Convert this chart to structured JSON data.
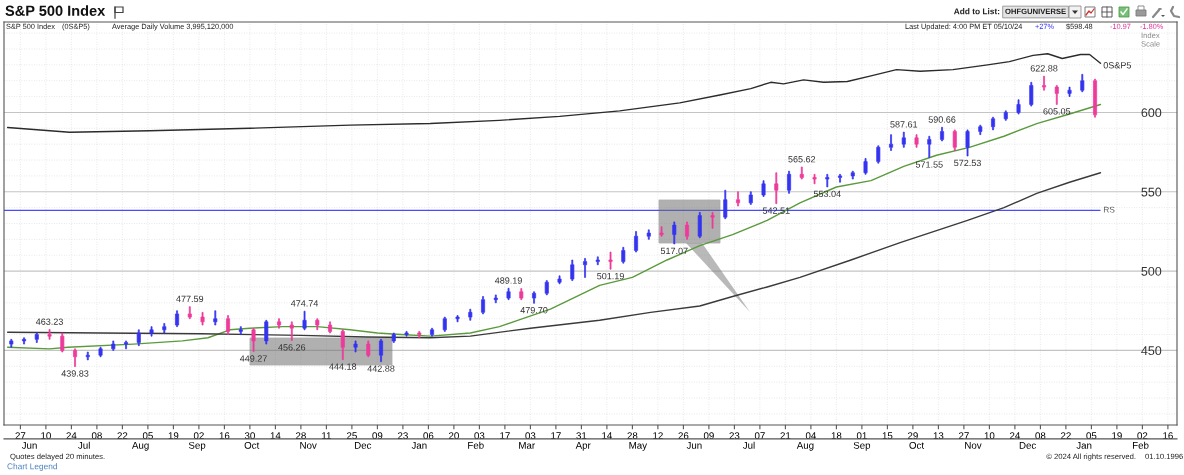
{
  "chart_data": {
    "type": "candlestick",
    "title": "S&P 500 Index",
    "x": [
      "2024-05-22",
      "2024-05-29",
      "2024-06-05",
      "2024-06-12",
      "2024-06-19",
      "2024-06-26",
      "2024-07-03",
      "2024-07-10",
      "2024-07-17",
      "2024-07-24",
      "2024-07-31",
      "2024-08-07",
      "2024-08-14",
      "2024-08-21",
      "2024-08-28",
      "2024-09-04",
      "2024-09-11",
      "2024-09-18",
      "2024-09-25",
      "2024-10-02",
      "2024-10-09",
      "2024-10-16",
      "2024-10-23",
      "2024-10-30",
      "2024-11-06",
      "2024-11-13",
      "2024-11-20",
      "2024-11-27",
      "2024-12-04",
      "2024-12-11",
      "2024-12-18",
      "2024-12-25",
      "2025-01-01",
      "2025-01-08",
      "2025-01-15",
      "2025-01-22",
      "2025-01-29",
      "2025-02-05",
      "2025-02-12",
      "2025-02-19",
      "2025-02-26",
      "2025-03-05",
      "2025-03-12",
      "2025-03-19",
      "2025-03-26",
      "2025-04-02",
      "2025-04-09",
      "2025-04-16",
      "2025-04-23",
      "2025-04-30",
      "2025-05-07",
      "2025-05-14",
      "2025-05-21",
      "2025-05-28",
      "2025-06-04",
      "2025-06-11",
      "2025-06-18",
      "2025-06-25",
      "2025-07-02",
      "2025-07-09",
      "2025-07-16",
      "2025-07-23",
      "2025-07-30",
      "2025-08-06",
      "2025-08-13",
      "2025-08-20",
      "2025-08-27",
      "2025-09-03",
      "2025-09-10",
      "2025-09-17",
      "2025-09-24",
      "2025-10-01",
      "2025-10-08",
      "2025-10-15",
      "2025-10-22",
      "2025-10-29",
      "2025-11-05",
      "2025-11-12",
      "2025-11-19",
      "2025-11-26",
      "2025-12-03",
      "2025-12-10",
      "2025-12-17",
      "2025-12-24",
      "2025-12-31",
      "2026-01-07"
    ],
    "ohlc": [
      [
        454,
        457,
        452,
        456
      ],
      [
        456,
        458,
        454,
        457
      ],
      [
        457,
        461,
        455,
        460
      ],
      [
        460,
        463.23,
        457,
        459
      ],
      [
        459,
        461,
        449,
        450
      ],
      [
        450,
        451,
        439.83,
        446
      ],
      [
        446,
        449,
        444,
        447
      ],
      [
        447,
        452,
        446,
        451
      ],
      [
        451,
        456,
        450,
        454
      ],
      [
        454,
        456,
        451,
        455
      ],
      [
        455,
        463,
        453,
        461
      ],
      [
        461,
        465,
        459,
        463
      ],
      [
        463,
        467,
        461,
        465
      ],
      [
        466,
        475,
        465,
        473
      ],
      [
        473,
        477.59,
        470,
        471
      ],
      [
        471,
        474,
        466,
        468
      ],
      [
        468,
        475,
        466,
        470
      ],
      [
        470,
        472,
        460,
        462
      ],
      [
        462,
        465,
        460,
        463
      ],
      [
        463,
        464,
        449.27,
        456
      ],
      [
        456,
        469,
        454,
        468
      ],
      [
        468,
        470,
        464,
        466
      ],
      [
        466,
        468,
        456.26,
        464
      ],
      [
        464,
        474.74,
        463,
        469
      ],
      [
        469,
        470,
        463,
        466
      ],
      [
        466,
        468,
        461,
        462
      ],
      [
        462,
        463,
        444.18,
        452
      ],
      [
        452,
        456,
        449,
        454
      ],
      [
        454,
        456,
        446,
        447
      ],
      [
        447,
        457,
        442.88,
        456
      ],
      [
        456,
        461,
        455,
        460
      ],
      [
        460,
        462,
        459,
        461
      ],
      [
        461,
        462,
        458,
        460
      ],
      [
        460,
        464,
        459,
        463
      ],
      [
        463,
        471,
        462,
        470
      ],
      [
        470,
        472,
        468,
        471
      ],
      [
        471,
        476,
        469,
        474
      ],
      [
        474,
        484,
        473,
        482
      ],
      [
        482,
        485,
        480,
        483
      ],
      [
        483,
        489.19,
        482,
        487
      ],
      [
        487,
        489,
        482,
        483
      ],
      [
        483,
        487,
        479.7,
        486
      ],
      [
        486,
        494,
        485,
        493
      ],
      [
        493,
        497,
        492,
        495
      ],
      [
        495,
        507,
        494,
        504
      ],
      [
        504,
        508,
        496,
        506
      ],
      [
        506,
        509,
        504,
        507
      ],
      [
        507,
        512,
        501.19,
        506
      ],
      [
        506,
        515,
        505,
        513
      ],
      [
        513,
        525,
        512,
        522
      ],
      [
        522,
        526,
        520,
        524
      ],
      [
        524,
        528,
        522,
        523
      ],
      [
        523,
        531,
        517.07,
        529
      ],
      [
        529,
        531,
        520,
        522
      ],
      [
        522,
        537,
        521,
        535
      ],
      [
        535,
        537,
        527,
        534
      ],
      [
        534,
        551,
        533,
        545
      ],
      [
        545,
        550,
        541,
        543
      ],
      [
        543,
        550,
        542,
        548
      ],
      [
        548,
        557,
        547,
        555
      ],
      [
        555,
        562,
        542.51,
        551
      ],
      [
        551,
        563,
        549,
        561
      ],
      [
        561,
        565.62,
        558,
        559
      ],
      [
        559,
        561,
        555,
        558
      ],
      [
        558,
        561,
        553.04,
        559
      ],
      [
        559,
        561,
        556,
        560
      ],
      [
        560,
        563,
        558,
        562
      ],
      [
        562,
        571,
        561,
        569
      ],
      [
        569,
        579,
        568,
        578
      ],
      [
        578,
        586,
        576,
        580
      ],
      [
        580,
        587.61,
        578,
        584
      ],
      [
        584,
        586,
        578,
        580
      ],
      [
        580,
        585,
        571.55,
        583
      ],
      [
        583,
        590.66,
        582,
        588
      ],
      [
        588,
        589,
        576,
        578
      ],
      [
        578,
        589,
        572.53,
        588
      ],
      [
        588,
        592,
        586,
        591
      ],
      [
        591,
        597,
        589,
        596
      ],
      [
        596,
        601,
        595,
        600
      ],
      [
        600,
        608,
        599,
        605
      ],
      [
        605,
        619,
        604,
        617
      ],
      [
        617,
        622.88,
        614,
        616
      ],
      [
        616,
        617,
        605.05,
        612
      ],
      [
        612,
        616,
        610,
        614
      ],
      [
        614,
        624,
        613,
        620
      ],
      [
        620,
        621,
        597,
        598.48
      ]
    ],
    "colors": [
      "#3434f0",
      "#3434f0",
      "#3434f0",
      "#ee3a9a",
      "#ee3a9a",
      "#ee3a9a",
      "#3434f0",
      "#3434f0",
      "#3434f0",
      "#3434f0",
      "#3434f0",
      "#3434f0",
      "#3434f0",
      "#3434f0",
      "#ee3a9a",
      "#ee3a9a",
      "#3434f0",
      "#ee3a9a",
      "#3434f0",
      "#ee3a9a",
      "#3434f0",
      "#ee3a9a",
      "#ee3a9a",
      "#3434f0",
      "#ee3a9a",
      "#ee3a9a",
      "#ee3a9a",
      "#3434f0",
      "#ee3a9a",
      "#3434f0",
      "#3434f0",
      "#3434f0",
      "#ee3a9a",
      "#3434f0",
      "#3434f0",
      "#3434f0",
      "#3434f0",
      "#3434f0",
      "#3434f0",
      "#3434f0",
      "#ee3a9a",
      "#3434f0",
      "#3434f0",
      "#3434f0",
      "#3434f0",
      "#3434f0",
      "#3434f0",
      "#ee3a9a",
      "#3434f0",
      "#3434f0",
      "#3434f0",
      "#ee3a9a",
      "#3434f0",
      "#ee3a9a",
      "#3434f0",
      "#ee3a9a",
      "#3434f0",
      "#ee3a9a",
      "#3434f0",
      "#3434f0",
      "#ee3a9a",
      "#3434f0",
      "#ee3a9a",
      "#ee3a9a",
      "#3434f0",
      "#3434f0",
      "#3434f0",
      "#3434f0",
      "#3434f0",
      "#3434f0",
      "#3434f0",
      "#ee3a9a",
      "#3434f0",
      "#3434f0",
      "#ee3a9a",
      "#3434f0",
      "#3434f0",
      "#3434f0",
      "#3434f0",
      "#3434f0",
      "#3434f0",
      "#ee3a9a",
      "#ee3a9a",
      "#3434f0",
      "#3434f0",
      "#ee3a9a"
    ],
    "series": [
      {
        "type": "line",
        "color": "#5b9a3c",
        "x": [
          "2024-05-20",
          "2024-06-12",
          "2024-06-22",
          "2024-07-28",
          "2024-08-24",
          "2024-09-07",
          "2024-09-19",
          "2024-09-30",
          "2024-10-18",
          "2024-11-06",
          "2024-11-24",
          "2024-12-09",
          "2024-12-22",
          "2025-01-07",
          "2025-01-29",
          "2025-02-14",
          "2025-02-24",
          "2025-03-14",
          "2025-04-10",
          "2025-04-28",
          "2025-05-17",
          "2025-06-04",
          "2025-06-22",
          "2025-07-11",
          "2025-07-29",
          "2025-08-18",
          "2025-09-06",
          "2025-09-24",
          "2025-10-12",
          "2025-10-30",
          "2025-11-18",
          "2025-12-06",
          "2025-12-24",
          "2026-01-10"
        ],
        "values": [
          452,
          451,
          452,
          454,
          456,
          458,
          463,
          464,
          465,
          465,
          463,
          461,
          460,
          459,
          461,
          465,
          469,
          476,
          491,
          496,
          507,
          516,
          523,
          532,
          543,
          553,
          557,
          566,
          573,
          578,
          585,
          593,
          599,
          605
        ]
      },
      {
        "type": "line",
        "color": "#3a3a3a",
        "x": [
          "2024-05-20",
          "2024-07-10",
          "2024-09-03",
          "2024-10-28",
          "2024-12-03",
          "2025-01-07",
          "2025-01-29",
          "2025-03-03",
          "2025-04-10",
          "2025-05-08",
          "2025-06-04",
          "2025-06-22",
          "2025-07-11",
          "2025-07-29",
          "2025-08-26",
          "2025-09-22",
          "2025-10-29",
          "2025-11-18",
          "2025-12-06",
          "2025-12-24",
          "2026-01-10"
        ],
        "values": [
          461.5,
          461,
          460.5,
          459.5,
          458.5,
          458,
          459,
          464,
          469,
          474,
          478,
          484,
          490,
          496,
          507,
          518,
          532,
          540,
          549,
          556,
          562
        ]
      },
      {
        "type": "line",
        "name": "0S&P5",
        "color": "#2b2b2b",
        "x": [
          "2024-05-20",
          "2024-06-23",
          "2024-08-06",
          "2024-09-30",
          "2024-11-24",
          "2025-01-07",
          "2025-02-14",
          "2025-03-19",
          "2025-04-21",
          "2025-05-24",
          "2025-06-15",
          "2025-07-02",
          "2025-07-13",
          "2025-07-20",
          "2025-07-31",
          "2025-08-11",
          "2025-08-24",
          "2025-09-06",
          "2025-09-20",
          "2025-10-03",
          "2025-10-21",
          "2025-11-09",
          "2025-11-21",
          "2025-12-04",
          "2025-12-12",
          "2025-12-20",
          "2025-12-30",
          "2026-01-04",
          "2026-01-10"
        ],
        "values": [
          590.5,
          587.5,
          588.5,
          590,
          592,
          593,
          595,
          597.5,
          601,
          606,
          611,
          615,
          619,
          618,
          620.5,
          619,
          619.5,
          623,
          627,
          626,
          627,
          630,
          632,
          636,
          637,
          634,
          636.5,
          636.5,
          631
        ]
      }
    ],
    "xlim": [
      "2024-05-18",
      "2026-02-21"
    ],
    "xticks": [
      {
        "value": "2024-05-27",
        "label": "27"
      },
      {
        "value": "2024-06-10",
        "label": "10"
      },
      {
        "value": "2024-06-24",
        "label": "24"
      },
      {
        "value": "2024-07-08",
        "label": "08"
      },
      {
        "value": "2024-07-22",
        "label": "22"
      },
      {
        "value": "2024-08-05",
        "label": "05"
      },
      {
        "value": "2024-08-19",
        "label": "19"
      },
      {
        "value": "2024-09-02",
        "label": "02"
      },
      {
        "value": "2024-09-16",
        "label": "16"
      },
      {
        "value": "2024-09-30",
        "label": "30"
      },
      {
        "value": "2024-10-14",
        "label": "14"
      },
      {
        "value": "2024-10-28",
        "label": "28"
      },
      {
        "value": "2024-11-11",
        "label": "11"
      },
      {
        "value": "2024-11-25",
        "label": "25"
      },
      {
        "value": "2024-12-09",
        "label": "09"
      },
      {
        "value": "2024-12-23",
        "label": "23"
      },
      {
        "value": "2025-01-06",
        "label": "06"
      },
      {
        "value": "2025-01-20",
        "label": "20"
      },
      {
        "value": "2025-02-03",
        "label": "03"
      },
      {
        "value": "2025-02-17",
        "label": "17"
      },
      {
        "value": "2025-03-03",
        "label": "03"
      },
      {
        "value": "2025-03-17",
        "label": "17"
      },
      {
        "value": "2025-03-31",
        "label": "31"
      },
      {
        "value": "2025-04-14",
        "label": "14"
      },
      {
        "value": "2025-04-28",
        "label": "28"
      },
      {
        "value": "2025-05-12",
        "label": "12"
      },
      {
        "value": "2025-05-26",
        "label": "26"
      },
      {
        "value": "2025-06-09",
        "label": "09"
      },
      {
        "value": "2025-06-23",
        "label": "23"
      },
      {
        "value": "2025-07-07",
        "label": "07"
      },
      {
        "value": "2025-07-21",
        "label": "21"
      },
      {
        "value": "2025-08-04",
        "label": "04"
      },
      {
        "value": "2025-08-18",
        "label": "18"
      },
      {
        "value": "2025-09-01",
        "label": "01"
      },
      {
        "value": "2025-09-15",
        "label": "15"
      },
      {
        "value": "2025-09-29",
        "label": "29"
      },
      {
        "value": "2025-10-13",
        "label": "13"
      },
      {
        "value": "2025-10-27",
        "label": "27"
      },
      {
        "value": "2025-11-10",
        "label": "10"
      },
      {
        "value": "2025-11-24",
        "label": "24"
      },
      {
        "value": "2025-12-08",
        "label": "08"
      },
      {
        "value": "2025-12-22",
        "label": "22"
      },
      {
        "value": "2026-01-05",
        "label": "05"
      },
      {
        "value": "2026-01-19",
        "label": "19"
      },
      {
        "value": "2026-02-02",
        "label": "02"
      },
      {
        "value": "2026-02-16",
        "label": "16"
      }
    ],
    "x2lim": [
      "2024-05-18",
      "2026-02-21"
    ],
    "x2ticks": [
      {
        "value": "2024-06-01",
        "label": "Jun"
      },
      {
        "value": "2024-07-01",
        "label": "Jul"
      },
      {
        "value": "2024-08-01",
        "label": "Aug"
      },
      {
        "value": "2024-09-01",
        "label": "Sep"
      },
      {
        "value": "2024-10-01",
        "label": "Oct"
      },
      {
        "value": "2024-11-01",
        "label": "Nov"
      },
      {
        "value": "2024-12-01",
        "label": "Dec"
      },
      {
        "value": "2025-01-01",
        "label": "Jan"
      },
      {
        "value": "2025-02-01",
        "label": "Feb"
      },
      {
        "value": "2025-03-01",
        "label": "Mar"
      },
      {
        "value": "2025-04-01",
        "label": "Apr"
      },
      {
        "value": "2025-05-01",
        "label": "May"
      },
      {
        "value": "2025-06-01",
        "label": "Jun"
      },
      {
        "value": "2025-07-01",
        "label": "Jul"
      },
      {
        "value": "2025-08-01",
        "label": "Aug"
      },
      {
        "value": "2025-09-01",
        "label": "Sep"
      },
      {
        "value": "2025-10-01",
        "label": "Oct"
      },
      {
        "value": "2025-11-01",
        "label": "Nov"
      },
      {
        "value": "2025-12-01",
        "label": "Dec"
      },
      {
        "value": "2026-01-01",
        "label": "Jan"
      },
      {
        "value": "2026-02-01",
        "label": "Feb"
      }
    ],
    "ylim": [
      403,
      657
    ],
    "yticks": [
      {
        "value": 410,
        "label": null
      },
      {
        "value": 420,
        "label": null
      },
      {
        "value": 430,
        "label": null
      },
      {
        "value": 440,
        "label": null
      },
      450,
      {
        "value": 460,
        "label": null
      },
      {
        "value": 470,
        "label": null
      },
      {
        "value": 480,
        "label": null
      },
      {
        "value": 490,
        "label": null
      },
      500,
      {
        "value": 510,
        "label": null
      },
      {
        "value": 520,
        "label": null
      },
      {
        "value": 530,
        "label": null
      },
      {
        "value": 540,
        "label": null
      },
      550,
      {
        "value": 560,
        "label": null
      },
      {
        "value": 570,
        "label": null
      },
      {
        "value": 580,
        "label": null
      },
      {
        "value": 590,
        "label": null
      },
      600,
      {
        "value": 610,
        "label": null
      },
      {
        "value": 620,
        "label": null
      },
      {
        "value": 630,
        "label": null
      },
      {
        "value": 640,
        "label": null
      },
      {
        "value": 650,
        "label": null
      }
    ],
    "grid": true,
    "ref_lines": [
      {
        "axis": "y",
        "value": 538.3,
        "label": "RS",
        "color": "#4a4aff"
      }
    ],
    "annotations": [
      "S&P 500 Index",
      "(0S&P5)",
      "Average Daily Volume 3,995,120,000",
      "Last Updated: 4:00 PM ET 05/10/24",
      "+27%",
      "$598.48",
      "-10.97",
      "-1.80%",
      "Index",
      "Scale",
      "Add to List:",
      "OHFGUNIVERSE",
      "Quotes delayed 20 minutes.",
      "Chart Legend",
      "© 2024 All rights reserved.",
      "01.10.1996",
      {
        "text": "463.23",
        "x": "2024-06-12",
        "y": 463.23
      },
      {
        "text": "439.83",
        "x": "2024-06-26",
        "y": 439.83
      },
      {
        "text": "477.59",
        "x": "2024-08-28",
        "y": 477.59
      },
      {
        "text": "449.27",
        "x": "2024-10-02",
        "y": 449.27
      },
      {
        "text": "456.26",
        "x": "2024-10-23",
        "y": 456.26
      },
      {
        "text": "474.74",
        "x": "2024-10-30",
        "y": 474.74
      },
      {
        "text": "444.18",
        "x": "2024-11-20",
        "y": 444.18
      },
      {
        "text": "442.88",
        "x": "2024-12-11",
        "y": 442.88
      },
      {
        "text": "489.19",
        "x": "2025-02-19",
        "y": 489.19
      },
      {
        "text": "479.70",
        "x": "2025-03-05",
        "y": 479.7
      },
      {
        "text": "501.19",
        "x": "2025-04-16",
        "y": 501.19
      },
      {
        "text": "517.07",
        "x": "2025-05-21",
        "y": 517.07
      },
      {
        "text": "542.51",
        "x": "2025-07-16",
        "y": 542.51
      },
      {
        "text": "565.62",
        "x": "2025-07-30",
        "y": 565.62
      },
      {
        "text": "553.04",
        "x": "2025-08-13",
        "y": 553.04
      },
      {
        "text": "587.61",
        "x": "2025-09-24",
        "y": 587.61
      },
      {
        "text": "571.55",
        "x": "2025-10-08",
        "y": 571.55
      },
      {
        "text": "590.66",
        "x": "2025-10-15",
        "y": 590.66
      },
      {
        "text": "572.53",
        "x": "2025-10-29",
        "y": 572.53
      },
      {
        "text": "622.88",
        "x": "2025-12-10",
        "y": 622.88
      },
      {
        "text": "605.05",
        "x": "2025-12-17",
        "y": 605.05
      }
    ]
  }
}
